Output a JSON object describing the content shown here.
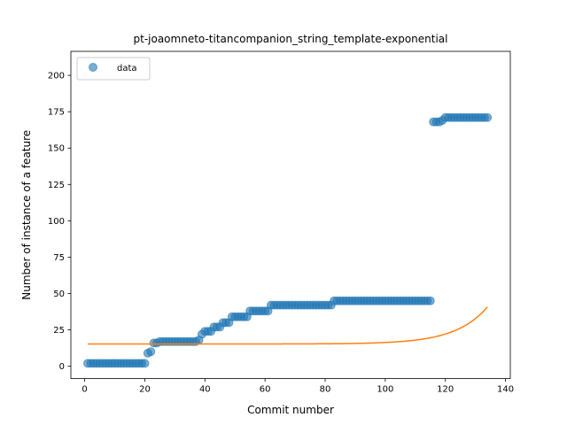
{
  "chart_data": {
    "type": "scatter",
    "title": "pt-joaomneto-titancompanion_string_template-exponential",
    "xlabel": "Commit number",
    "ylabel": "Number of instance of a feature",
    "xlim": [
      -4.6,
      141.6
    ],
    "ylim": [
      -8.5,
      216.5
    ],
    "xticks": [
      0,
      20,
      40,
      60,
      80,
      100,
      120,
      140
    ],
    "yticks": [
      0,
      25,
      50,
      75,
      100,
      125,
      150,
      175,
      200
    ],
    "grid": false,
    "legend": {
      "position": "top-left",
      "entries": [
        "data"
      ]
    },
    "colors": {
      "data": "#1f77b4",
      "fit": "#ff7f0e"
    },
    "series": [
      {
        "name": "data",
        "kind": "scatter",
        "segments": [
          {
            "x_start": 1,
            "x_end": 20,
            "y": 2
          },
          {
            "x_start": 21,
            "x_end": 21,
            "y": 9
          },
          {
            "x_start": 22,
            "x_end": 22,
            "y": 10
          },
          {
            "x_start": 23,
            "x_end": 24,
            "y": 16
          },
          {
            "x_start": 25,
            "x_end": 37,
            "y": 17
          },
          {
            "x_start": 38,
            "x_end": 38,
            "y": 18
          },
          {
            "x_start": 39,
            "x_end": 39,
            "y": 22
          },
          {
            "x_start": 40,
            "x_end": 42,
            "y": 24
          },
          {
            "x_start": 43,
            "x_end": 45,
            "y": 27
          },
          {
            "x_start": 46,
            "x_end": 48,
            "y": 30
          },
          {
            "x_start": 49,
            "x_end": 54,
            "y": 34
          },
          {
            "x_start": 55,
            "x_end": 61,
            "y": 38
          },
          {
            "x_start": 62,
            "x_end": 82,
            "y": 42
          },
          {
            "x_start": 83,
            "x_end": 115,
            "y": 45
          },
          {
            "x_start": 116,
            "x_end": 118,
            "y": 168
          },
          {
            "x_start": 119,
            "x_end": 119,
            "y": 169
          },
          {
            "x_start": 120,
            "x_end": 134,
            "y": 171
          }
        ]
      },
      {
        "kind": "line",
        "function": "exponential",
        "a": 15.3,
        "b": 8.5e-05,
        "c": 0.0941,
        "x_range": [
          1,
          134
        ]
      }
    ]
  }
}
